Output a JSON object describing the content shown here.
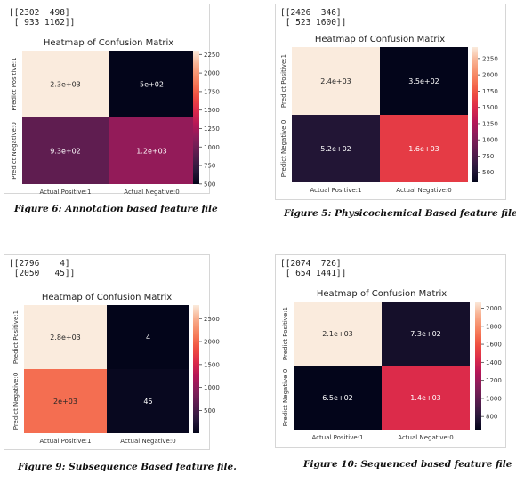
{
  "figures": [
    {
      "matrix_text": "[[2302  498]\n [ 933 1162]]",
      "caption": "Figure 6: Annotation based feature file"
    },
    {
      "matrix_text": "[[2426  346]\n [ 523 1600]]",
      "caption": "Figure 5: Physicochemical Based feature file"
    },
    {
      "matrix_text": "[[2796    4]\n [2050   45]]",
      "caption": "Figure 9: Subsequence Based feature file."
    },
    {
      "matrix_text": "[[2074  726]\n [ 654 1441]]",
      "caption": "Figure 10: Sequenced based feature file"
    }
  ],
  "colormap": [
    "#03051a",
    "#2b1a3d",
    "#581d4e",
    "#841e5a",
    "#b41658",
    "#dc2b4a",
    "#f0513f",
    "#f6825e",
    "#f8ac8b",
    "#faebdd"
  ],
  "chart_data": [
    {
      "type": "heatmap",
      "title": "Heatmap of Confusion Matrix",
      "x_categories": [
        "Actual Positive:1",
        "Actual Negative:0"
      ],
      "y_categories": [
        "Predict Positive:1",
        "Predict Negative:0"
      ],
      "values": [
        [
          2302,
          498
        ],
        [
          933,
          1162
        ]
      ],
      "cell_labels": [
        [
          "2.3e+03",
          "5e+02"
        ],
        [
          "9.3e+02",
          "1.2e+03"
        ]
      ],
      "colorbar": {
        "min": 498,
        "max": 2302,
        "ticks": [
          500,
          750,
          1000,
          1250,
          1500,
          1750,
          2000,
          2250
        ]
      }
    },
    {
      "type": "heatmap",
      "title": "Heatmap of Confusion Matrix",
      "x_categories": [
        "Actual Positive:1",
        "Actual Negative:0"
      ],
      "y_categories": [
        "Predict Positive:1",
        "Predict Negative:0"
      ],
      "values": [
        [
          2426,
          346
        ],
        [
          523,
          1600
        ]
      ],
      "cell_labels": [
        [
          "2.4e+03",
          "3.5e+02"
        ],
        [
          "5.2e+02",
          "1.6e+03"
        ]
      ],
      "colorbar": {
        "min": 346,
        "max": 2426,
        "ticks": [
          500,
          750,
          1000,
          1250,
          1500,
          1750,
          2000,
          2250
        ]
      }
    },
    {
      "type": "heatmap",
      "title": "Heatmap of Confusion Matrix",
      "x_categories": [
        "Actual Positive:1",
        "Actual Negative:0"
      ],
      "y_categories": [
        "Predict Positive:1",
        "Predict Negative:0"
      ],
      "values": [
        [
          2796,
          4
        ],
        [
          2050,
          45
        ]
      ],
      "cell_labels": [
        [
          "2.8e+03",
          "4"
        ],
        [
          "2e+03",
          "45"
        ]
      ],
      "colorbar": {
        "min": 4,
        "max": 2796,
        "ticks": [
          500,
          1000,
          1500,
          2000,
          2500
        ]
      }
    },
    {
      "type": "heatmap",
      "title": "Heatmap of Confusion Matrix",
      "x_categories": [
        "Actual Positive:1",
        "Actual Negative:0"
      ],
      "y_categories": [
        "Predict Positive:1",
        "Predict Negative:0"
      ],
      "values": [
        [
          2074,
          726
        ],
        [
          654,
          1441
        ]
      ],
      "cell_labels": [
        [
          "2.1e+03",
          "7.3e+02"
        ],
        [
          "6.5e+02",
          "1.4e+03"
        ]
      ],
      "colorbar": {
        "min": 654,
        "max": 2074,
        "ticks": [
          800,
          1000,
          1200,
          1400,
          1600,
          1800,
          2000
        ]
      }
    }
  ]
}
